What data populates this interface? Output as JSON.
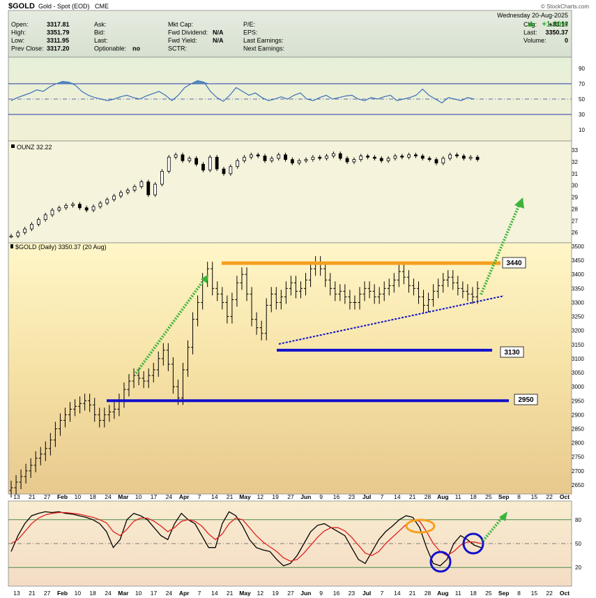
{
  "header": {
    "symbol": "$GOLD",
    "name": "Gold - Spot (EOD)",
    "exchange": "CME",
    "watermark": "© StockCharts.com",
    "date": "Wednesday  20-Aug-2025",
    "pct_change": "+1.00%",
    "rows": [
      [
        "Open:",
        "3317.81",
        "Ask:",
        "",
        "Mkt Cap:",
        "",
        "P/E:",
        "",
        "Chg:",
        "+33.17"
      ],
      [
        "High:",
        "3351.79",
        "Bid:",
        "",
        "Fwd Dividend:",
        "N/A",
        "EPS:",
        "",
        "Last:",
        "3350.37"
      ],
      [
        "Low:",
        "3311.95",
        "Last:",
        "",
        "Fwd Yield:",
        "N/A",
        "Last Earnings:",
        "",
        "Volume:",
        "0"
      ],
      [
        "Prev Close:",
        "3317.20",
        "Optionable:",
        "no",
        "SCTR:",
        "",
        "Next Earnings:",
        "",
        "",
        ""
      ]
    ]
  },
  "x_axis": {
    "labels": [
      "13",
      "21",
      "27",
      "Feb",
      "10",
      "18",
      "24",
      "Mar",
      "10",
      "17",
      "24",
      "Apr",
      "7",
      "14",
      "21",
      "May",
      "12",
      "19",
      "27",
      "Jun",
      "9",
      "16",
      "23",
      "Jul",
      "7",
      "14",
      "21",
      "28",
      "Aug",
      "11",
      "18",
      "25",
      "Sep",
      "8",
      "15",
      "22",
      "Oct"
    ],
    "bold": [
      "Feb",
      "Mar",
      "Apr",
      "May",
      "Jun",
      "Jul",
      "Aug",
      "Sep",
      "Oct"
    ]
  },
  "colors": {
    "up_arrow": "#2e9e2e",
    "orange": "#f5a01e",
    "blue": "#1111cc",
    "green_dots": "#3cb43c",
    "rsi_fill": "#3a7fc1",
    "stoch_k": "#000000",
    "stoch_d": "#e02020"
  },
  "chart_data": [
    {
      "type": "line",
      "panel": "RSI",
      "y_ticks": [
        10,
        30,
        50,
        70,
        90
      ],
      "ylim": [
        0,
        100
      ],
      "values": [
        48,
        52,
        55,
        58,
        62,
        60,
        66,
        70,
        73,
        72,
        68,
        60,
        55,
        52,
        50,
        48,
        50,
        53,
        55,
        52,
        50,
        54,
        57,
        60,
        55,
        48,
        55,
        65,
        70,
        74,
        72,
        60,
        52,
        47,
        55,
        65,
        60,
        55,
        58,
        52,
        48,
        50,
        53,
        50,
        55,
        58,
        50,
        48,
        52,
        55,
        50,
        52,
        54,
        55,
        50,
        48,
        52,
        50,
        53,
        55,
        48,
        50,
        52,
        55,
        63,
        55,
        50,
        45,
        52,
        50,
        48,
        52,
        50
      ]
    },
    {
      "type": "line",
      "panel": "OUNZ",
      "legend": "OUNZ 32.22",
      "y_ticks": [
        26,
        27,
        28,
        29,
        30,
        31,
        32,
        33
      ],
      "ylim": [
        25.3,
        33.6
      ],
      "values": [
        25.7,
        26.0,
        26.3,
        26.7,
        27.1,
        27.5,
        27.9,
        28.1,
        28.3,
        28.4,
        28.1,
        27.9,
        28.2,
        28.5,
        28.8,
        29.1,
        29.4,
        29.6,
        29.9,
        30.3,
        29.2,
        30.1,
        31.2,
        32.4,
        32.6,
        32.1,
        32.3,
        31.8,
        31.3,
        32.4,
        31.4,
        31.0,
        31.6,
        32.1,
        32.4,
        32.6,
        32.5,
        32.1,
        32.3,
        32.6,
        32.2,
        31.9,
        32.1,
        32.2,
        32.4,
        32.3,
        32.5,
        32.7,
        32.3,
        32.0,
        32.2,
        32.5,
        32.4,
        32.3,
        32.1,
        32.3,
        32.5,
        32.4,
        32.6,
        32.5,
        32.3,
        32.2,
        31.9,
        32.3,
        32.6,
        32.5,
        32.3,
        32.4,
        32.2
      ]
    },
    {
      "type": "bar",
      "panel": "price",
      "legend": "$GOLD (Daily) 3350.37 (20 Aug)",
      "y_ticks": [
        2650,
        2700,
        2750,
        2800,
        2850,
        2900,
        2950,
        3000,
        3050,
        3100,
        3150,
        3200,
        3250,
        3300,
        3350,
        3400,
        3450,
        3500
      ],
      "ylim": [
        2610,
        3520
      ],
      "close": [
        2640,
        2660,
        2680,
        2700,
        2720,
        2745,
        2760,
        2780,
        2810,
        2850,
        2880,
        2900,
        2920,
        2930,
        2940,
        2950,
        2935,
        2900,
        2880,
        2900,
        2910,
        2920,
        2950,
        2990,
        3020,
        3040,
        3030,
        3020,
        3040,
        3060,
        3100,
        3130,
        3080,
        3000,
        2960,
        3060,
        3140,
        3240,
        3300,
        3380,
        3420,
        3350,
        3330,
        3300,
        3250,
        3310,
        3370,
        3400,
        3330,
        3240,
        3210,
        3190,
        3290,
        3330,
        3300,
        3320,
        3350,
        3370,
        3340,
        3350,
        3380,
        3420,
        3440,
        3420,
        3380,
        3350,
        3330,
        3340,
        3320,
        3300,
        3300,
        3330,
        3350,
        3340,
        3320,
        3330,
        3350,
        3360,
        3380,
        3410,
        3390,
        3360,
        3350,
        3320,
        3290,
        3310,
        3340,
        3360,
        3380,
        3390,
        3370,
        3350,
        3340,
        3330,
        3320,
        3350
      ],
      "annotations": {
        "resistance": 3440,
        "support_1": 3130,
        "support_2": 2950,
        "labels": [
          "3440",
          "3130",
          "2950"
        ]
      }
    },
    {
      "type": "line",
      "panel": "Stochastic",
      "y_ticks": [
        20,
        50,
        80
      ],
      "ylim": [
        0,
        100
      ],
      "series": [
        {
          "values": [
            40,
            60,
            75,
            85,
            88,
            90,
            89,
            90,
            88,
            87,
            85,
            83,
            80,
            75,
            65,
            45,
            55,
            80,
            88,
            85,
            80,
            70,
            60,
            55,
            75,
            88,
            80,
            75,
            60,
            45,
            45,
            75,
            90,
            85,
            72,
            55,
            45,
            42,
            40,
            30,
            22,
            25,
            35,
            50,
            65,
            73,
            75,
            70,
            65,
            60,
            45,
            30,
            25,
            40,
            55,
            65,
            72,
            80,
            85,
            83,
            70,
            45,
            25,
            22,
            30,
            50,
            60,
            55,
            48,
            45
          ]
        },
        {
          "values": [
            50,
            55,
            65,
            75,
            82,
            86,
            88,
            89,
            89,
            88,
            87,
            85,
            83,
            80,
            76,
            65,
            60,
            68,
            78,
            82,
            82,
            78,
            72,
            65,
            70,
            78,
            80,
            78,
            72,
            62,
            55,
            62,
            75,
            82,
            80,
            70,
            60,
            52,
            46,
            40,
            32,
            28,
            30,
            38,
            48,
            58,
            66,
            70,
            70,
            66,
            58,
            48,
            38,
            35,
            40,
            50,
            58,
            66,
            74,
            80,
            78,
            65,
            50,
            40,
            35,
            40,
            48,
            52,
            52,
            50
          ]
        }
      ]
    }
  ]
}
